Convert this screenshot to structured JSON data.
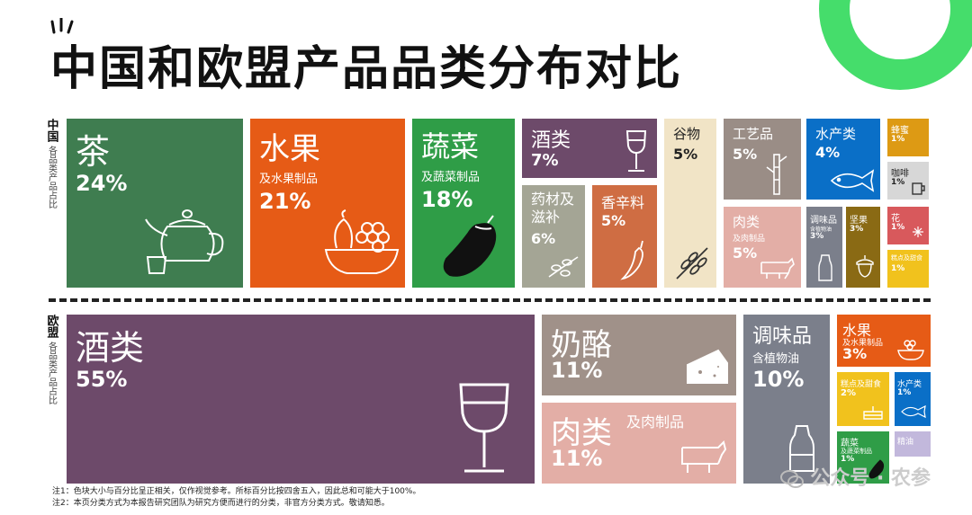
{
  "title": "中国和欧盟产品品类分布对比",
  "china_label": {
    "main": "中国",
    "sub": "各品类产品占比"
  },
  "eu_label": {
    "main": "欧盟",
    "sub": "各品类产品占比"
  },
  "notes": [
    "注1：色块大小与百分比呈正相关，仅作视觉参考。所标百分比按四舍五入，因此总和可能大于100%。",
    "注2：本页分类方式为本报告研究团队为研究方便而进行的分类，非官方分类方式。敬请知悉。"
  ],
  "watermark": "公众号 · 农参",
  "colors": {
    "tea": "#3f7d50",
    "fruit": "#e65b16",
    "veg": "#2f9d47",
    "wine": "#6d4a6a",
    "herb": "#a4a595",
    "spice": "#cf6d43",
    "grain": "#f1e4c6",
    "craft": "#9a8d86",
    "meat": "#e3aea6",
    "aqua": "#0a6fc7",
    "honey": "#dd9a14",
    "coffee": "#d7d7d7",
    "flower": "#d8595c",
    "snack": "#f1c21d",
    "condiment": "#7b7f8b",
    "nut": "#8a6a14",
    "dairy": "#a09189",
    "oil": "#c2b8dc"
  },
  "chart_data": [
    {
      "type": "treemap",
      "region": "中国",
      "items": [
        {
          "name": "茶",
          "sub": "",
          "value": 24
        },
        {
          "name": "水果",
          "sub": "及水果制品",
          "value": 21
        },
        {
          "name": "蔬菜",
          "sub": "及蔬菜制品",
          "value": 18
        },
        {
          "name": "酒类",
          "sub": "",
          "value": 7
        },
        {
          "name": "药材及滋补",
          "sub": "",
          "value": 6
        },
        {
          "name": "香辛料",
          "sub": "",
          "value": 5
        },
        {
          "name": "谷物",
          "sub": "",
          "value": 5
        },
        {
          "name": "工艺品",
          "sub": "",
          "value": 5
        },
        {
          "name": "肉类",
          "sub": "及肉制品",
          "value": 5
        },
        {
          "name": "水产类",
          "sub": "",
          "value": 4
        },
        {
          "name": "调味品",
          "sub": "含植物油",
          "value": 3
        },
        {
          "name": "坚果",
          "sub": "",
          "value": 3
        },
        {
          "name": "蜂蜜",
          "sub": "",
          "value": 1
        },
        {
          "name": "咖啡",
          "sub": "",
          "value": 1
        },
        {
          "name": "花",
          "sub": "",
          "value": 1
        },
        {
          "name": "糕点及甜食",
          "sub": "",
          "value": 1
        }
      ]
    },
    {
      "type": "treemap",
      "region": "欧盟",
      "items": [
        {
          "name": "酒类",
          "sub": "",
          "value": 55
        },
        {
          "name": "奶酪",
          "sub": "",
          "value": 11
        },
        {
          "name": "肉类",
          "sub": "及肉制品",
          "value": 11
        },
        {
          "name": "调味品",
          "sub": "含植物油",
          "value": 10
        },
        {
          "name": "水果",
          "sub": "及水果制品",
          "value": 3
        },
        {
          "name": "糕点及甜食",
          "sub": "",
          "value": 2
        },
        {
          "name": "水产类",
          "sub": "",
          "value": 1
        },
        {
          "name": "蔬菜",
          "sub": "及蔬菜制品",
          "value": 1
        },
        {
          "name": "精油",
          "sub": "",
          "value": null
        }
      ]
    }
  ]
}
